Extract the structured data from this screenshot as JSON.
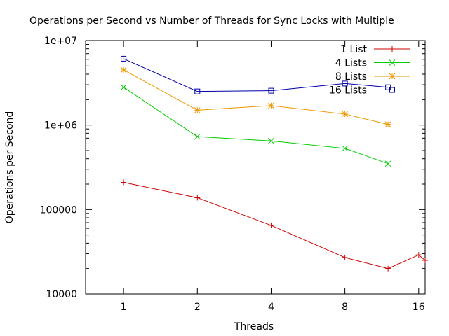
{
  "chart_data": {
    "type": "line",
    "title": "Operations per Second vs Number of Threads for Sync Locks with Multiple",
    "xlabel": "Threads",
    "ylabel": "Operations per Second",
    "x_scale": "log2",
    "y_scale": "log10",
    "xlim": [
      0.7,
      17
    ],
    "ylim": [
      10000,
      10000000
    ],
    "x_ticks": [
      1,
      2,
      4,
      8,
      16
    ],
    "x_tick_labels": [
      "1",
      "2",
      "4",
      "8",
      "16"
    ],
    "y_ticks": [
      10000,
      100000,
      1000000,
      10000000
    ],
    "y_tick_labels": [
      "10000",
      "100000",
      "1e+06",
      "1e+07"
    ],
    "grid": false,
    "legend_position": "top-right",
    "series": [
      {
        "name": "1 List",
        "color": "#cc0000",
        "marker": "plus",
        "x": [
          1,
          2,
          4,
          8,
          12,
          16,
          17
        ],
        "y": [
          210000,
          138000,
          65000,
          27000,
          20000,
          29000,
          25000
        ]
      },
      {
        "name": "4 Lists",
        "color": "#00cc00",
        "marker": "cross",
        "x": [
          1,
          2,
          4,
          8,
          12
        ],
        "y": [
          2800000,
          730000,
          650000,
          530000,
          350000
        ]
      },
      {
        "name": "8 Lists",
        "color": "#ee9900",
        "marker": "star",
        "x": [
          1,
          2,
          4,
          8,
          12
        ],
        "y": [
          4500000,
          1500000,
          1700000,
          1350000,
          1020000
        ]
      },
      {
        "name": "16 Lists",
        "color": "#0000aa",
        "marker": "square",
        "x": [
          1,
          2,
          4,
          8,
          12
        ],
        "y": [
          6100000,
          2500000,
          2550000,
          3100000,
          2800000
        ]
      }
    ]
  }
}
